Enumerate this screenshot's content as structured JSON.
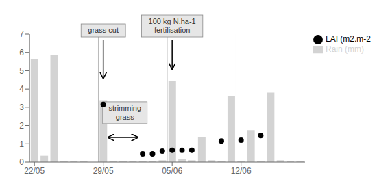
{
  "chart_data": {
    "type": "bar",
    "categories": [
      "22/05",
      null,
      null,
      null,
      null,
      null,
      null,
      "29/05",
      null,
      null,
      null,
      null,
      null,
      null,
      "05/06",
      null,
      null,
      null,
      null,
      null,
      null,
      "12/06",
      null,
      null,
      null,
      null,
      null,
      null
    ],
    "series": [
      {
        "name": "Rain (mm)",
        "type": "bar",
        "color": "#d3d3d3",
        "values": [
          5.65,
          0.35,
          5.85,
          0.05,
          0.05,
          0.05,
          null,
          3.35,
          0.05,
          0.05,
          0.05,
          0.05,
          0.05,
          0.1,
          4.45,
          0.15,
          0.1,
          1.35,
          0.1,
          0.05,
          3.6,
          0.05,
          1.75,
          0.05,
          3.8,
          0.1,
          0.05,
          0.05
        ]
      },
      {
        "name": "LAI (m2.m-2",
        "type": "scatter",
        "color": "black",
        "values": [
          null,
          null,
          null,
          null,
          null,
          null,
          null,
          3.15,
          null,
          null,
          null,
          0.45,
          0.45,
          0.6,
          0.65,
          0.65,
          0.65,
          null,
          null,
          1.15,
          null,
          1.2,
          null,
          1.45,
          null,
          null,
          null,
          null
        ]
      }
    ],
    "ylim": [
      0,
      7
    ],
    "yticks": [
      0,
      1,
      2,
      3,
      4,
      5,
      6,
      7
    ],
    "grid": false,
    "legend": "upper right",
    "annotations": [
      "grass cut",
      "100 kg N.ha-1\nfertilisation",
      "strimming\ngrass"
    ]
  }
}
